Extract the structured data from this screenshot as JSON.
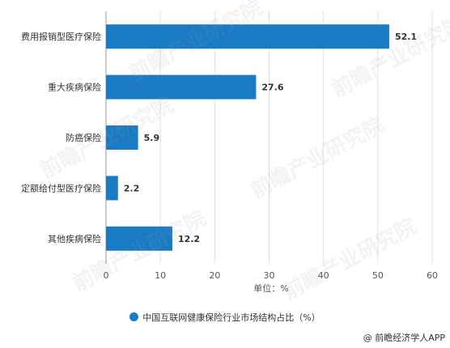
{
  "chart_data": {
    "type": "bar",
    "orientation": "horizontal",
    "categories": [
      "费用报销型医疗保险",
      "重大疾病保险",
      "防癌保险",
      "定额给付型医疗保险",
      "其他疾病保险"
    ],
    "values": [
      52.1,
      27.6,
      5.9,
      2.2,
      12.2
    ],
    "value_labels": [
      "52.1",
      "27.6",
      "5.9",
      "2.2",
      "12.2"
    ],
    "xlim": [
      0,
      60
    ],
    "xticks": [
      0,
      10,
      20,
      30,
      40,
      50,
      60
    ],
    "xlabel": "单位：%",
    "legend_label": "中国互联网健康保险行业市场结构占比（%）",
    "legend_position": "bottom",
    "grid": "vertical",
    "bar_color": "#1a7bc4"
  },
  "source": "@ 前瞻经济学人APP",
  "watermark": "前瞻产业研究院"
}
